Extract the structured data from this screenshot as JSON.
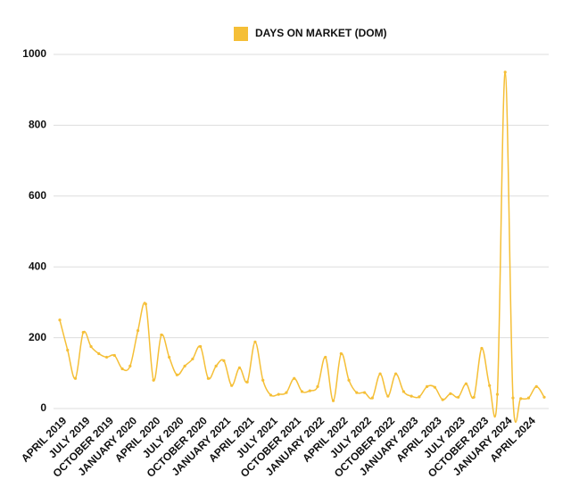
{
  "chart_data": {
    "type": "line",
    "series": [
      {
        "name": "DAYS ON MARKET (DOM)",
        "color": "#f5bf37",
        "values": [
          250,
          165,
          85,
          215,
          175,
          155,
          145,
          150,
          112,
          120,
          220,
          295,
          80,
          208,
          145,
          95,
          120,
          140,
          175,
          85,
          120,
          135,
          65,
          115,
          75,
          188,
          80,
          38,
          40,
          45,
          85,
          48,
          50,
          62,
          145,
          22,
          155,
          80,
          45,
          45,
          30,
          98,
          35,
          98,
          48,
          35,
          33,
          62,
          60,
          25,
          42,
          32,
          70,
          32,
          170,
          65,
          40,
          950,
          30,
          28,
          30,
          62,
          32
        ]
      }
    ],
    "categories": [
      "APRIL 2019",
      null,
      null,
      "JULY 2019",
      null,
      null,
      "OCTOBER 2019",
      null,
      null,
      "JANUARY 2020",
      null,
      null,
      "APRIL 2020",
      null,
      null,
      "JULY 2020",
      null,
      null,
      "OCTOBER 2020",
      null,
      null,
      "JANUARY 2021",
      null,
      null,
      "APRIL 2021",
      null,
      null,
      "JULY 2021",
      null,
      null,
      "OCTOBER 2021",
      null,
      null,
      "JANUARY 2022",
      null,
      null,
      "APRIL 2022",
      null,
      null,
      "JULY 2022",
      null,
      null,
      "OCTOBER 2022",
      null,
      null,
      "JANUARY 2023",
      null,
      null,
      "APRIL 2023",
      null,
      null,
      "JULY 2023",
      null,
      null,
      "OCTOBER 2023",
      null,
      null,
      "JANUARY 2024",
      null,
      null,
      "APRIL 2024",
      null,
      null
    ],
    "ylim": [
      0,
      1000
    ],
    "yticks": [
      0,
      200,
      400,
      600,
      800,
      1000
    ],
    "grid": true,
    "legend": "top"
  }
}
